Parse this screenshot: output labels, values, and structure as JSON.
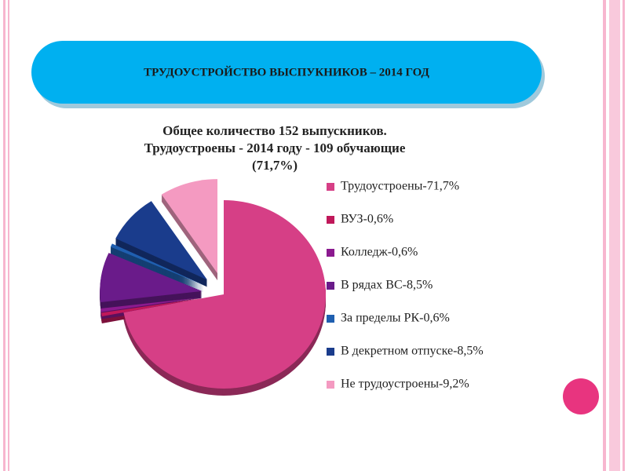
{
  "header": {
    "title": "ТРУДОУСТРОЙСТВО ВЫСПУКНИКОВ – 2014 ГОД"
  },
  "chart_data": {
    "type": "pie",
    "title": [
      "Общее количество 152 выпускников.",
      "Трудоустроены - 2014 году - 109 обучающие",
      "(71,7%)"
    ],
    "categories": [
      "Трудоустроены-71,7%",
      "ВУЗ-0,6%",
      "Колледж-0,6%",
      "В рядах ВС-8,5%",
      "За пределы РК-0,6%",
      "В декретном отпуске-8,5%",
      "Не трудоустроены-9,2%"
    ],
    "values": [
      71.7,
      0.6,
      0.6,
      8.5,
      0.6,
      8.5,
      9.2
    ],
    "colors": [
      "#d63f86",
      "#c0185a",
      "#8b1a8f",
      "#6a1b8a",
      "#1f5fb0",
      "#1a3c8c",
      "#f49ac1"
    ],
    "legend": "right"
  }
}
